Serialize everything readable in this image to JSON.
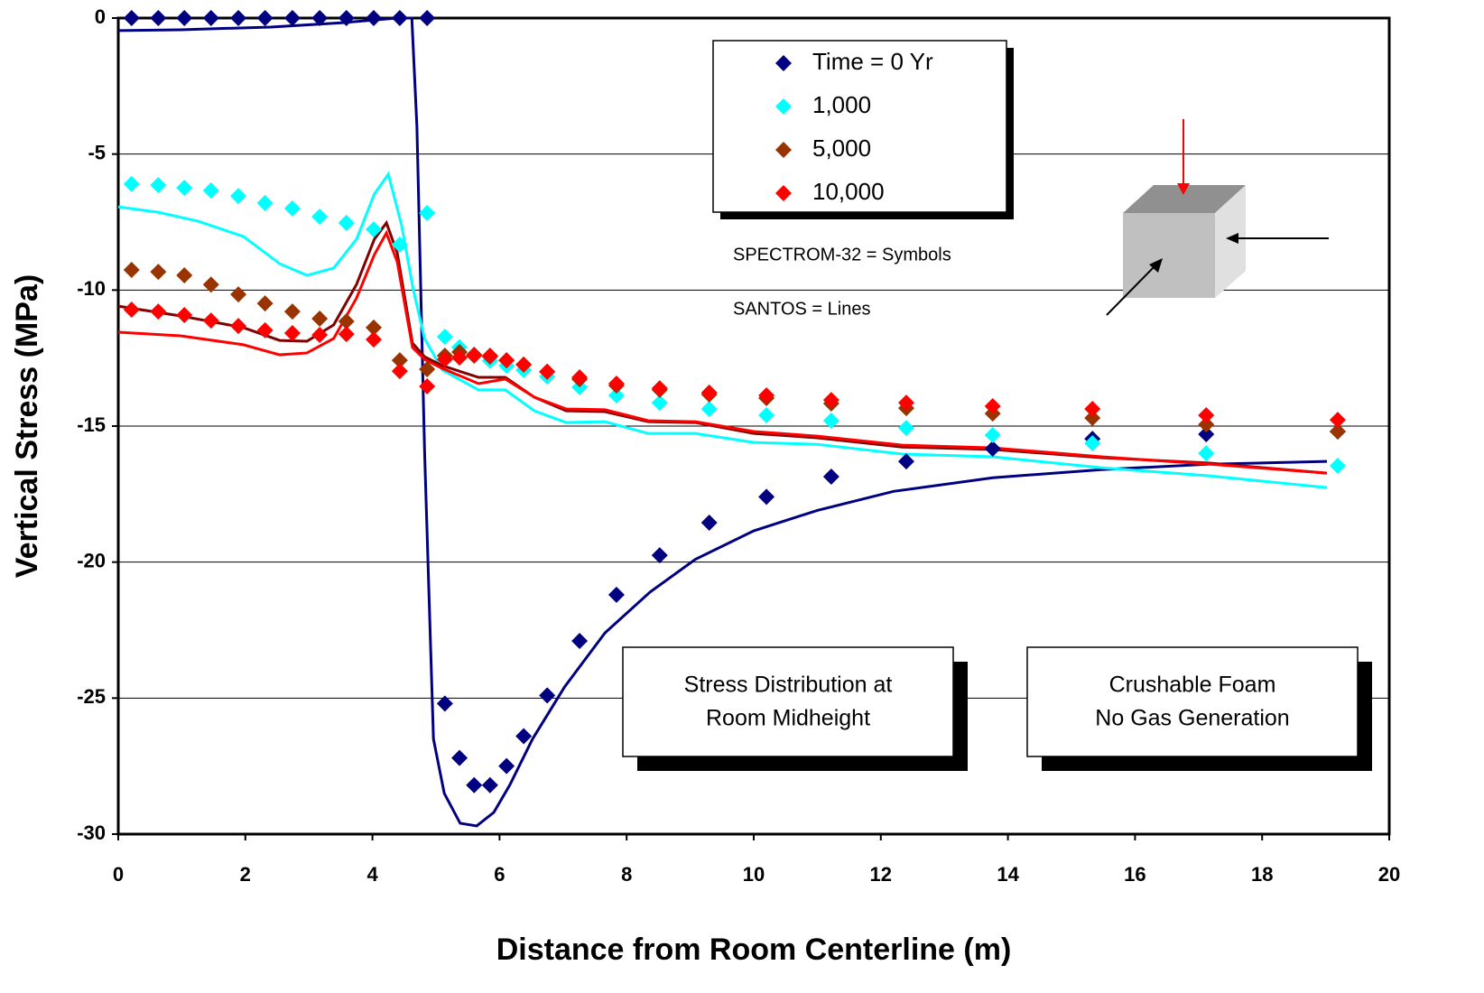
{
  "chart_data": {
    "type": "scatter",
    "xlabel": "Distance from Room Centerline (m)",
    "ylabel": "Vertical Stress (MPa)",
    "xlim": [
      0,
      20
    ],
    "ylim": [
      -30,
      0
    ],
    "xticks": [
      0,
      2,
      4,
      6,
      8,
      10,
      12,
      14,
      16,
      18,
      20
    ],
    "yticks": [
      0,
      -5,
      -10,
      -15,
      -20,
      -25,
      -30
    ],
    "grid": true,
    "annotations": [
      "SPECTROM-32 = Symbols",
      "SANTOS = Lines"
    ],
    "text_boxes": [
      [
        "Stress Distribution at",
        "Room Midheight"
      ],
      [
        "Crushable Foam",
        "No Gas Generation"
      ]
    ],
    "series": [
      {
        "name": "Time = 0 Yr",
        "color": "#000080",
        "x": [
          0.21,
          0.63,
          1.04,
          1.46,
          1.89,
          2.31,
          2.74,
          3.17,
          3.59,
          4.02,
          4.43,
          4.86,
          5.14,
          5.37,
          5.6,
          5.85,
          6.11,
          6.38,
          6.75,
          7.26,
          7.84,
          8.52,
          9.3,
          10.2,
          11.22,
          12.4,
          13.76,
          15.33,
          17.12,
          19.19
        ],
        "values": [
          0,
          0,
          0,
          0,
          0,
          0,
          0,
          0,
          0,
          0,
          0,
          0,
          -25.2,
          -27.2,
          -28.2,
          -28.2,
          -27.5,
          -26.4,
          -24.9,
          -22.9,
          -21.2,
          -19.75,
          -18.55,
          -17.6,
          -16.86,
          -16.3,
          -15.83,
          -15.47,
          -15.3,
          -15.2
        ],
        "line_color": "#000080",
        "line_x": [
          0,
          0.98,
          2.4,
          3.54,
          4.39,
          4.62,
          4.7,
          4.82,
          4.96,
          5.13,
          5.38,
          5.64,
          5.91,
          6.16,
          6.52,
          7.02,
          7.66,
          8.37,
          9.08,
          10.0,
          11.0,
          12.2,
          13.76,
          15.47,
          17.17,
          19.02
        ],
        "line_values": [
          -0.46,
          -0.43,
          -0.33,
          -0.17,
          0,
          0,
          -4,
          -15.9,
          -26.5,
          -28.5,
          -29.6,
          -29.7,
          -29.2,
          -28.2,
          -26.5,
          -24.6,
          -22.6,
          -21.1,
          -19.9,
          -18.85,
          -18.1,
          -17.4,
          -16.9,
          -16.6,
          -16.4,
          -16.3
        ]
      },
      {
        "name": "1,000",
        "color": "#00ffff",
        "x": [
          0.21,
          0.63,
          1.04,
          1.46,
          1.89,
          2.31,
          2.74,
          3.17,
          3.59,
          4.02,
          4.43,
          4.86,
          5.14,
          5.37,
          5.6,
          5.85,
          6.11,
          6.38,
          6.75,
          7.26,
          7.84,
          8.52,
          9.3,
          10.2,
          11.22,
          12.4,
          13.76,
          15.33,
          17.12,
          19.19
        ],
        "values": [
          -6.1,
          -6.14,
          -6.24,
          -6.34,
          -6.54,
          -6.8,
          -7.0,
          -7.3,
          -7.53,
          -7.77,
          -8.33,
          -7.17,
          -11.72,
          -12.1,
          -12.4,
          -12.6,
          -12.78,
          -12.94,
          -13.18,
          -13.57,
          -13.87,
          -14.14,
          -14.37,
          -14.6,
          -14.8,
          -15.07,
          -15.33,
          -15.63,
          -16.0,
          -16.46
        ],
        "line_color": "#00ffff",
        "line_x": [
          0,
          0.63,
          1.26,
          1.97,
          2.54,
          2.97,
          3.39,
          3.75,
          4.03,
          4.25,
          4.46,
          4.64,
          4.82,
          5.1,
          5.67,
          6.09,
          6.55,
          7.05,
          7.66,
          8.34,
          9.08,
          10.0,
          11.0,
          12.34,
          13.76,
          15.47,
          17.17,
          19.02
        ],
        "line_values": [
          -6.94,
          -7.14,
          -7.47,
          -8.03,
          -9.03,
          -9.46,
          -9.19,
          -8.13,
          -6.47,
          -5.74,
          -7.63,
          -9.96,
          -11.78,
          -12.94,
          -13.67,
          -13.67,
          -14.44,
          -14.87,
          -14.84,
          -15.27,
          -15.27,
          -15.6,
          -15.67,
          -16.03,
          -16.13,
          -16.53,
          -16.83,
          -17.26
        ]
      },
      {
        "name": "5,000",
        "color": "#993300",
        "x": [
          0.21,
          0.63,
          1.04,
          1.46,
          1.89,
          2.31,
          2.74,
          3.17,
          3.59,
          4.02,
          4.43,
          4.86,
          5.14,
          5.37,
          5.6,
          5.85,
          6.11,
          6.38,
          6.75,
          7.26,
          7.84,
          8.52,
          9.3,
          10.2,
          11.22,
          12.4,
          13.76,
          15.33,
          17.12,
          19.19
        ],
        "values": [
          -9.26,
          -9.33,
          -9.46,
          -9.8,
          -10.16,
          -10.49,
          -10.79,
          -11.05,
          -11.15,
          -11.38,
          -12.58,
          -12.91,
          -12.41,
          -12.28,
          -12.38,
          -12.45,
          -12.58,
          -12.74,
          -13.0,
          -13.28,
          -13.51,
          -13.67,
          -13.84,
          -13.97,
          -14.17,
          -14.34,
          -14.54,
          -14.7,
          -14.94,
          -15.2
        ],
        "line_color": "#800000",
        "line_x": [
          0,
          0.98,
          1.97,
          2.54,
          2.97,
          3.39,
          3.75,
          4.03,
          4.22,
          4.39,
          4.63,
          4.82,
          5.1,
          5.67,
          6.09,
          6.55,
          7.05,
          7.66,
          8.34,
          9.08,
          10.0,
          11.0,
          12.34,
          13.76,
          15.47,
          17.17,
          19.02
        ],
        "line_values": [
          -10.59,
          -10.95,
          -11.38,
          -11.85,
          -11.88,
          -11.28,
          -9.79,
          -8.13,
          -7.53,
          -8.63,
          -11.95,
          -12.45,
          -12.78,
          -13.21,
          -13.21,
          -13.94,
          -14.44,
          -14.47,
          -14.84,
          -14.87,
          -15.27,
          -15.43,
          -15.77,
          -15.86,
          -16.16,
          -16.36,
          -16.73
        ]
      },
      {
        "name": "10,000",
        "color": "#ff0000",
        "x": [
          0.21,
          0.63,
          1.04,
          1.46,
          1.89,
          2.31,
          2.74,
          3.17,
          3.59,
          4.02,
          4.43,
          4.86,
          5.14,
          5.37,
          5.6,
          5.85,
          6.11,
          6.38,
          6.75,
          7.26,
          7.84,
          8.52,
          9.3,
          10.2,
          11.22,
          12.4,
          13.76,
          15.33,
          17.12,
          19.19
        ],
        "values": [
          -10.72,
          -10.79,
          -10.92,
          -11.12,
          -11.32,
          -11.48,
          -11.58,
          -11.65,
          -11.62,
          -11.82,
          -12.98,
          -13.54,
          -12.55,
          -12.48,
          -12.41,
          -12.41,
          -12.58,
          -12.74,
          -13.0,
          -13.21,
          -13.44,
          -13.61,
          -13.77,
          -13.87,
          -14.04,
          -14.14,
          -14.27,
          -14.37,
          -14.6,
          -14.77
        ],
        "line_color": "#ff0000",
        "line_x": [
          0,
          0.98,
          1.97,
          2.54,
          2.97,
          3.39,
          3.75,
          4.03,
          4.22,
          4.39,
          4.63,
          4.82,
          5.1,
          5.67,
          6.09,
          6.55,
          7.05,
          7.66,
          8.34,
          9.08,
          10.0,
          11.0,
          12.34,
          13.76,
          15.47,
          17.17,
          19.02
        ],
        "line_values": [
          -11.55,
          -11.68,
          -12.01,
          -12.38,
          -12.31,
          -11.78,
          -10.29,
          -8.7,
          -7.9,
          -8.96,
          -12.11,
          -12.55,
          -12.88,
          -13.44,
          -13.27,
          -13.94,
          -14.37,
          -14.4,
          -14.8,
          -14.84,
          -15.2,
          -15.37,
          -15.7,
          -15.8,
          -16.13,
          -16.4,
          -16.73
        ]
      }
    ]
  }
}
